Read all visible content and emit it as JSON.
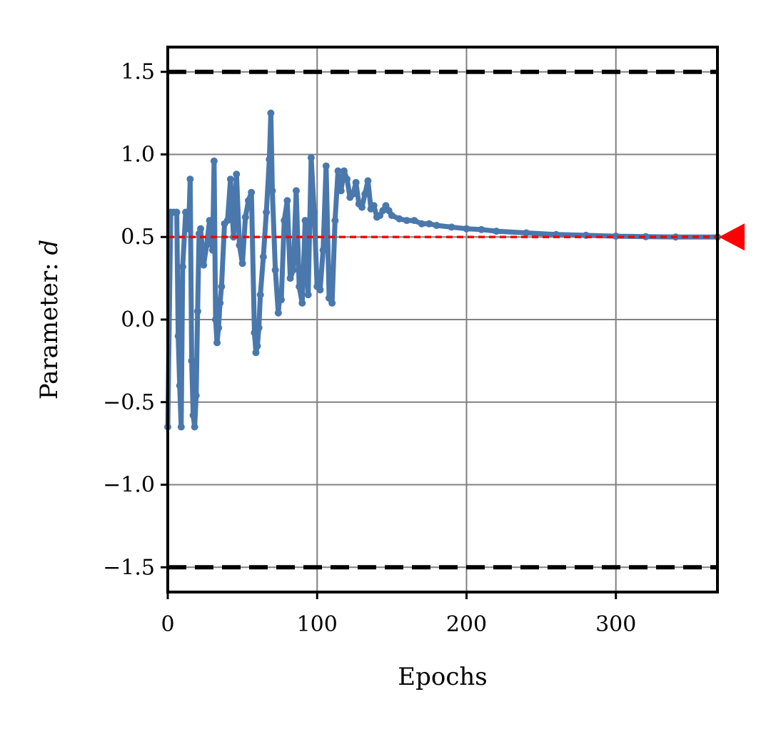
{
  "chart_data": {
    "type": "line",
    "title": "",
    "xlabel": "Epochs",
    "ylabel": "Parameter: d",
    "xlim": [
      0,
      368
    ],
    "ylim": [
      -1.65,
      1.65
    ],
    "x_ticks": [
      0,
      100,
      200,
      300
    ],
    "y_ticks": [
      -1.5,
      -1.0,
      -0.5,
      0.0,
      0.5,
      1.0,
      1.5
    ],
    "x_tick_labels": [
      "0",
      "100",
      "200",
      "300"
    ],
    "y_tick_labels": [
      "−1.5",
      "−1.0",
      "−0.5",
      "0.0",
      "0.5",
      "1.0",
      "1.5"
    ],
    "grid": true,
    "colors": {
      "series": "#4a78ac",
      "target": "#ff0000",
      "bounds": "#000000",
      "grid": "#808080"
    },
    "bounds": [
      1.5,
      -1.5
    ],
    "target_value": 0.5,
    "series": [
      {
        "x": [
          0,
          2,
          4,
          6,
          7,
          8,
          9,
          10,
          12,
          14,
          15,
          16,
          17,
          18,
          19,
          20,
          21,
          22,
          24,
          26,
          28,
          30,
          31,
          32,
          33,
          34,
          35,
          36,
          38,
          40,
          42,
          44,
          46,
          48,
          50,
          52,
          54,
          56,
          58,
          59,
          60,
          61,
          62,
          64,
          66,
          68,
          69,
          70,
          72,
          74,
          75,
          76,
          78,
          80,
          82,
          84,
          86,
          88,
          90,
          92,
          94,
          96,
          98,
          100,
          102,
          104,
          106,
          108,
          110,
          112,
          114,
          116,
          118,
          120,
          122,
          124,
          126,
          128,
          130,
          132,
          134,
          136,
          138,
          140,
          142,
          144,
          146,
          148,
          150,
          155,
          160,
          165,
          170,
          175,
          180,
          190,
          200,
          210,
          220,
          240,
          260,
          280,
          300,
          320,
          340,
          368
        ],
        "y": [
          -0.65,
          0.65,
          0.65,
          0.65,
          -0.1,
          -0.4,
          -0.65,
          0.32,
          0.65,
          0.55,
          0.85,
          -0.25,
          -0.58,
          -0.65,
          -0.46,
          0.05,
          0.52,
          0.55,
          0.33,
          0.45,
          0.6,
          0.42,
          0.96,
          0.0,
          -0.14,
          -0.05,
          0.1,
          0.2,
          0.58,
          0.6,
          0.85,
          0.5,
          0.88,
          0.45,
          0.34,
          0.62,
          0.72,
          0.77,
          -0.08,
          -0.2,
          -0.16,
          -0.05,
          0.15,
          0.38,
          0.65,
          0.97,
          1.25,
          0.78,
          0.3,
          0.04,
          0.15,
          0.12,
          0.6,
          0.72,
          0.25,
          0.3,
          0.78,
          0.2,
          0.1,
          0.6,
          0.15,
          0.98,
          0.65,
          0.2,
          0.18,
          0.42,
          0.93,
          0.13,
          0.1,
          0.6,
          0.9,
          0.78,
          0.9,
          0.85,
          0.74,
          0.76,
          0.83,
          0.7,
          0.68,
          0.76,
          0.84,
          0.67,
          0.69,
          0.62,
          0.63,
          0.66,
          0.69,
          0.66,
          0.63,
          0.61,
          0.6,
          0.6,
          0.58,
          0.58,
          0.57,
          0.56,
          0.55,
          0.545,
          0.535,
          0.525,
          0.515,
          0.51,
          0.505,
          0.502,
          0.5,
          0.5
        ]
      }
    ]
  }
}
